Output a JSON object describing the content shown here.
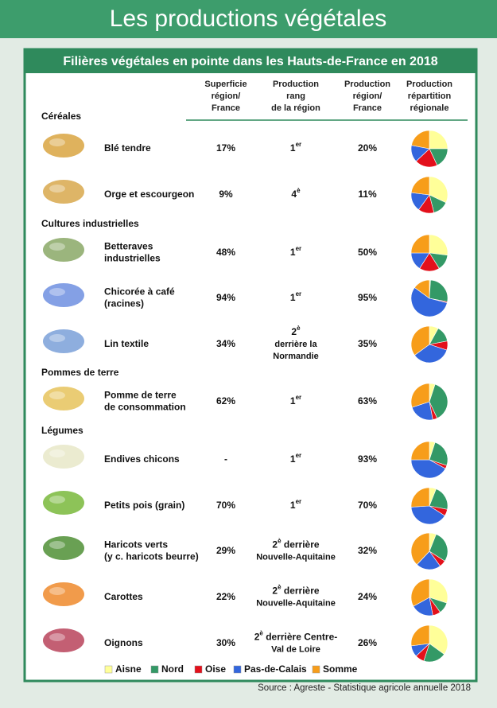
{
  "header": {
    "title": "Les productions végétales"
  },
  "subtitle": "Filières végétales en pointe dans les Hauts-de-France en 2018",
  "columns": {
    "surface": [
      "Superficie",
      "région/",
      "France"
    ],
    "rank": [
      "Production",
      "rang",
      "de la région"
    ],
    "production": [
      "Production",
      "région/",
      "France"
    ],
    "distribution": [
      "Production",
      "répartition",
      "régionale"
    ]
  },
  "legend": [
    {
      "name": "Aisne",
      "color": "#ffff99"
    },
    {
      "name": "Nord",
      "color": "#339966"
    },
    {
      "name": "Oise",
      "color": "#e3101b"
    },
    {
      "name": "Pas-de-Calais",
      "color": "#3366dd"
    },
    {
      "name": "Somme",
      "color": "#f79d1a"
    }
  ],
  "sections": [
    {
      "title": "Céréales",
      "items": [
        {
          "name": [
            "Blé tendre"
          ],
          "surface": "17%",
          "rank": {
            "number": "1",
            "suffix": "er"
          },
          "production": "20%",
          "pie": [
            25,
            18,
            20,
            15,
            22
          ]
        },
        {
          "name": [
            "Orge et escourgeon"
          ],
          "surface": "9%",
          "rank": {
            "number": "4",
            "suffix": "è"
          },
          "production": "11%",
          "pie": [
            32,
            14,
            14,
            17,
            23
          ]
        }
      ]
    },
    {
      "title": "Cultures industrielles",
      "items": [
        {
          "name": [
            "Betteraves",
            "industrielles"
          ],
          "surface": "48%",
          "rank": {
            "number": "1",
            "suffix": "er"
          },
          "production": "50%",
          "pie": [
            27,
            14,
            18,
            16,
            25
          ]
        },
        {
          "name": [
            "Chicorée à café",
            "(racines)"
          ],
          "surface": "94%",
          "rank": {
            "number": "1",
            "suffix": "er"
          },
          "production": "95%",
          "pie": [
            1,
            27,
            1,
            56,
            15
          ]
        },
        {
          "name": [
            "Lin textile"
          ],
          "surface": "34%",
          "rank": {
            "number": "2",
            "suffix": "è",
            "lines": [
              "derrière la",
              "Normandie"
            ]
          },
          "production": "35%",
          "pie": [
            8,
            14,
            8,
            35,
            35
          ]
        }
      ]
    },
    {
      "title": "Pommes de terre",
      "items": [
        {
          "name": [
            "Pomme de terre",
            "de consommation"
          ],
          "surface": "62%",
          "rank": {
            "number": "1",
            "suffix": "er"
          },
          "production": "63%",
          "pie": [
            5,
            38,
            4,
            23,
            30
          ]
        }
      ]
    },
    {
      "title": "Légumes",
      "items": [
        {
          "name": [
            "Endives chicons"
          ],
          "surface": "-",
          "rank": {
            "number": "1",
            "suffix": "er"
          },
          "production": "93%",
          "pie": [
            5,
            25,
            3,
            42,
            25
          ]
        },
        {
          "name": [
            "Petits pois (grain)"
          ],
          "surface": "70%",
          "rank": {
            "number": "1",
            "suffix": "er"
          },
          "production": "70%",
          "pie": [
            6,
            22,
            6,
            40,
            26
          ]
        },
        {
          "name": [
            "Haricots verts",
            "(y c. haricots beurre)"
          ],
          "surface": "29%",
          "rank": {
            "number": "2",
            "suffix": "è",
            "inline": " derrière",
            "lines": [
              "Nouvelle-Aquitaine"
            ]
          },
          "production": "32%",
          "pie": [
            6,
            28,
            6,
            22,
            38
          ]
        },
        {
          "name": [
            "Carottes"
          ],
          "surface": "22%",
          "rank": {
            "number": "2",
            "suffix": "è",
            "inline": " derrière",
            "lines": [
              "Nouvelle-Aquitaine"
            ]
          },
          "production": "24%",
          "pie": [
            30,
            10,
            7,
            20,
            33
          ]
        },
        {
          "name": [
            "Oignons"
          ],
          "surface": "30%",
          "rank": {
            "number": "2",
            "suffix": "è",
            "inline": " derrière Centre-",
            "lines": [
              "Val de Loire"
            ]
          },
          "production": "26%",
          "pie": [
            35,
            20,
            8,
            10,
            27
          ]
        }
      ]
    }
  ],
  "source": "Source : Agreste - Statistique agricole annuelle 2018"
}
